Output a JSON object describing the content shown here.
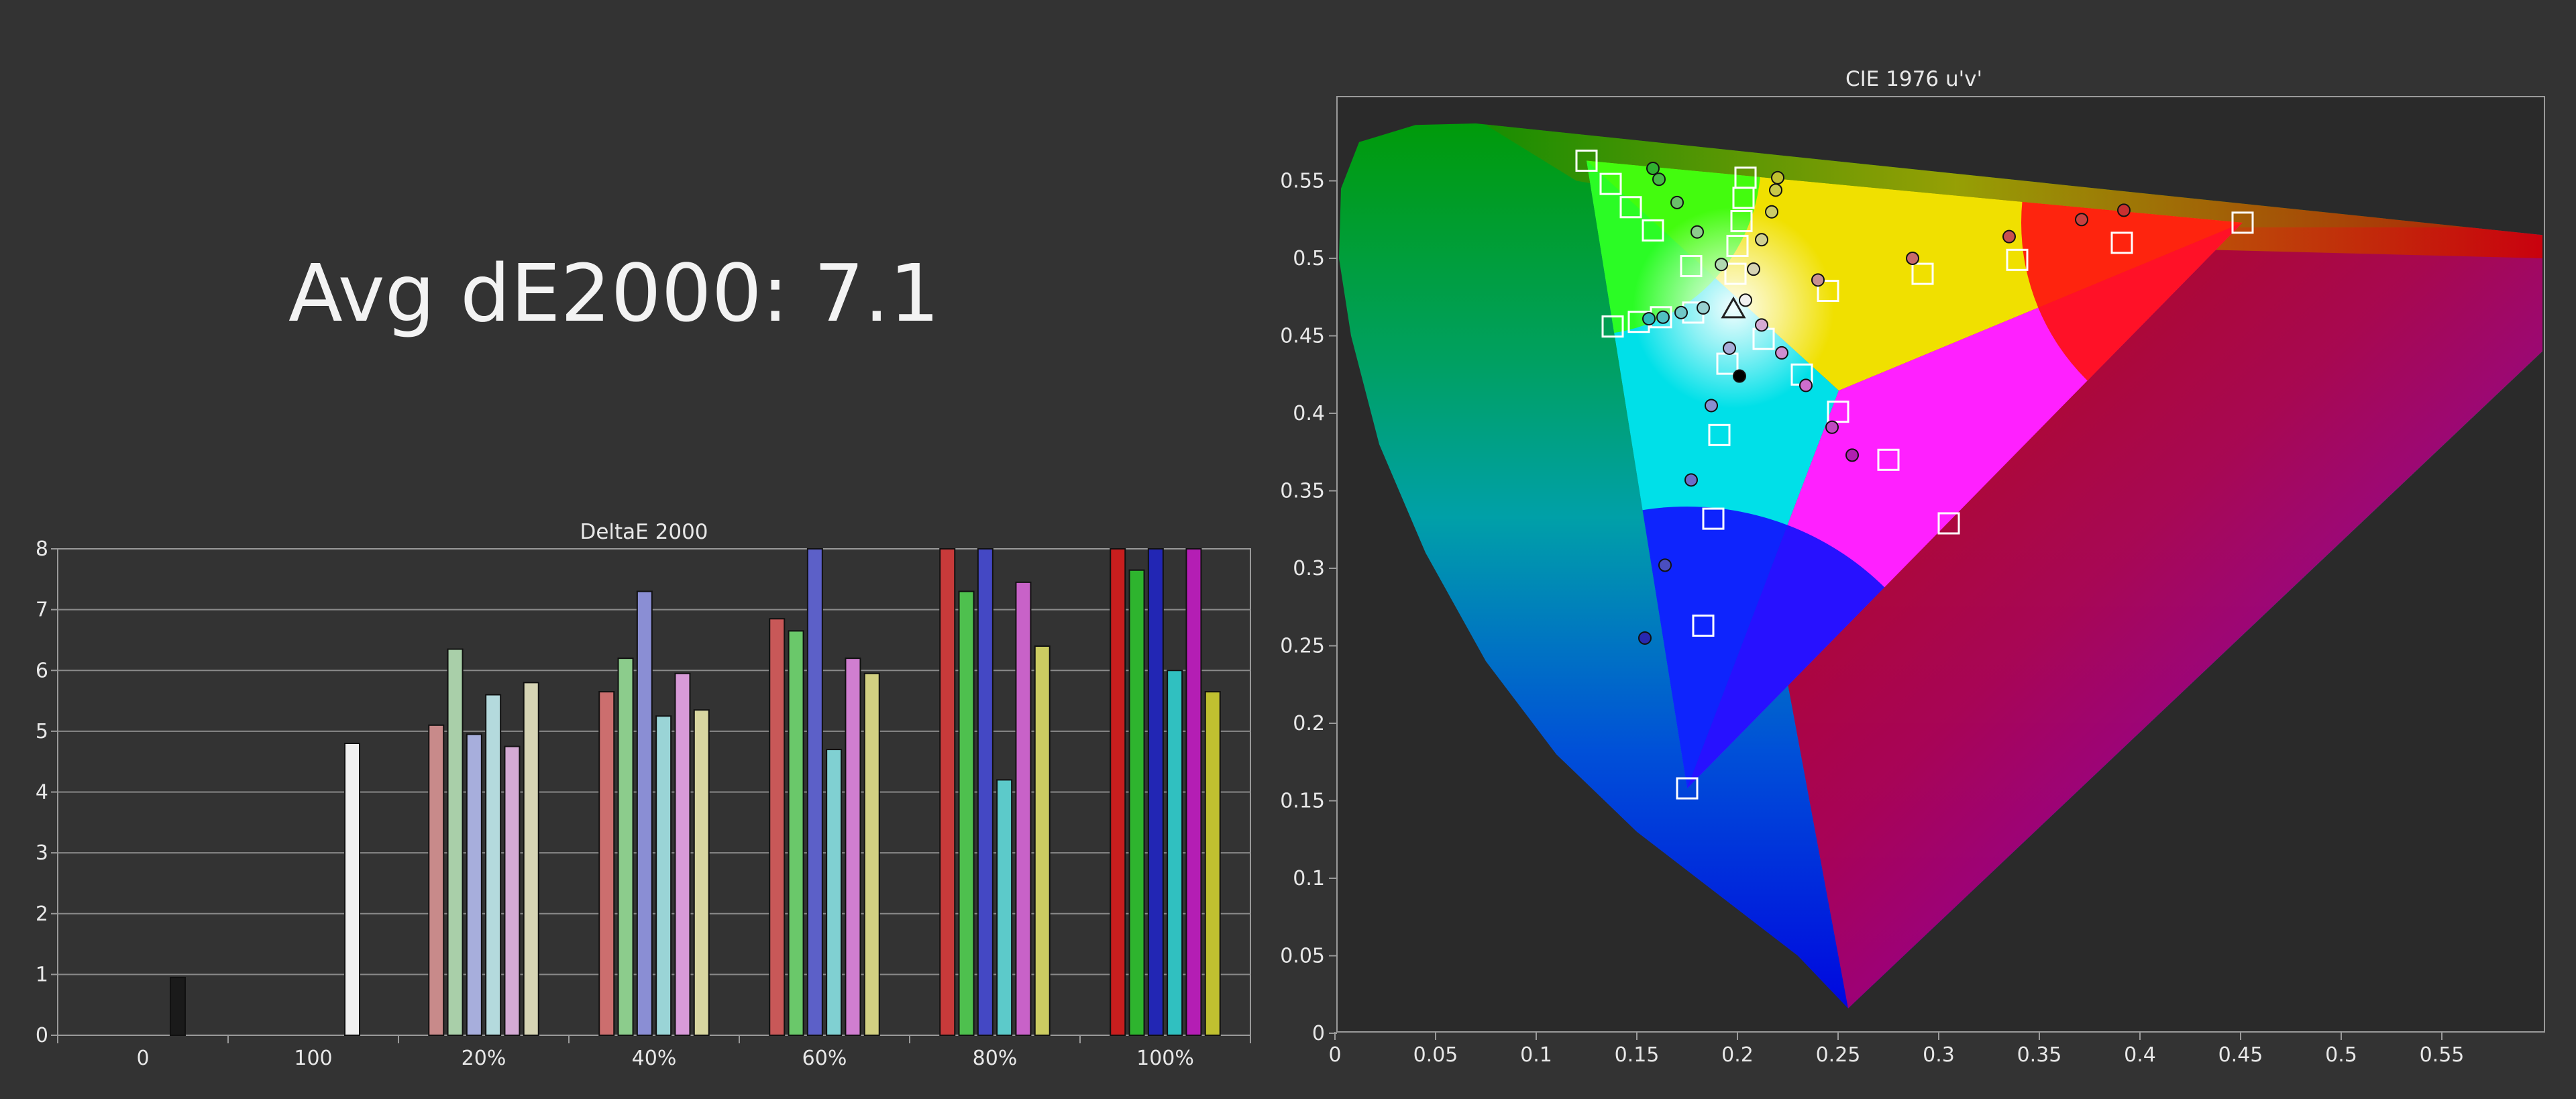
{
  "headline": "Avg dE2000: 7.1",
  "colors": {
    "background": "#333333",
    "plot_bg": "#2a2a2a",
    "text": "#e8e8e8",
    "grid": "#888888"
  },
  "chart_data": [
    {
      "type": "bar",
      "title": "DeltaE 2000",
      "xlabel": "",
      "ylabel": "",
      "ylim": [
        0,
        8
      ],
      "yticks": [
        0,
        1,
        2,
        3,
        4,
        5,
        6,
        7,
        8
      ],
      "grid": true,
      "category_labels": [
        "0",
        "100",
        "20%",
        "40%",
        "60%",
        "80%",
        "100%"
      ],
      "bars": [
        {
          "group": 0,
          "color": "#1a1a1a",
          "value": 0.95
        },
        {
          "group": 1,
          "color": "#f0f0f0",
          "value": 4.8
        },
        {
          "group": 2,
          "color": "#c88a8a",
          "value": 5.1
        },
        {
          "group": 2,
          "color": "#a9cfa9",
          "value": 6.35
        },
        {
          "group": 2,
          "color": "#a7aedc",
          "value": 4.95
        },
        {
          "group": 2,
          "color": "#b4dadd",
          "value": 5.6
        },
        {
          "group": 2,
          "color": "#d4aad4",
          "value": 4.75
        },
        {
          "group": 2,
          "color": "#d6d4b4",
          "value": 5.8
        },
        {
          "group": 3,
          "color": "#cc6e6e",
          "value": 5.65
        },
        {
          "group": 3,
          "color": "#8ccc8c",
          "value": 6.2
        },
        {
          "group": 3,
          "color": "#8a8ed4",
          "value": 7.3
        },
        {
          "group": 3,
          "color": "#9ad4d6",
          "value": 5.25
        },
        {
          "group": 3,
          "color": "#d89ad8",
          "value": 5.95
        },
        {
          "group": 3,
          "color": "#d8d6a0",
          "value": 5.35
        },
        {
          "group": 4,
          "color": "#c85858",
          "value": 6.85
        },
        {
          "group": 4,
          "color": "#6ac86a",
          "value": 6.65
        },
        {
          "group": 4,
          "color": "#5c60c8",
          "value": 8.0
        },
        {
          "group": 4,
          "color": "#80d0d2",
          "value": 4.7
        },
        {
          "group": 4,
          "color": "#d07ed0",
          "value": 6.2
        },
        {
          "group": 4,
          "color": "#d2d082",
          "value": 5.95
        },
        {
          "group": 5,
          "color": "#c83a3a",
          "value": 8.0
        },
        {
          "group": 5,
          "color": "#4ec04e",
          "value": 7.3
        },
        {
          "group": 5,
          "color": "#4448c4",
          "value": 8.0
        },
        {
          "group": 5,
          "color": "#5ccaca",
          "value": 4.2
        },
        {
          "group": 5,
          "color": "#c862c8",
          "value": 7.45
        },
        {
          "group": 5,
          "color": "#cccc62",
          "value": 6.4
        },
        {
          "group": 6,
          "color": "#c81e1e",
          "value": 8.0
        },
        {
          "group": 6,
          "color": "#2eb42e",
          "value": 7.65
        },
        {
          "group": 6,
          "color": "#2226b4",
          "value": 8.0
        },
        {
          "group": 6,
          "color": "#30c0c0",
          "value": 6.0
        },
        {
          "group": 6,
          "color": "#b41eb4",
          "value": 8.0
        },
        {
          "group": 6,
          "color": "#c0c030",
          "value": 5.65
        }
      ]
    },
    {
      "type": "scatter",
      "title": "CIE 1976 u'v'",
      "xlabel": "",
      "ylabel": "",
      "xlim": [
        0,
        0.6
      ],
      "ylim": [
        0,
        0.6
      ],
      "xticks": [
        "0",
        "0.05",
        "0.1",
        "0.15",
        "0.2",
        "0.25",
        "0.3",
        "0.35",
        "0.4",
        "0.45",
        "0.5",
        "0.55"
      ],
      "yticks": [
        "0",
        "0.05",
        "0.1",
        "0.15",
        "0.2",
        "0.25",
        "0.3",
        "0.35",
        "0.4",
        "0.45",
        "0.5",
        "0.55"
      ],
      "gamut_triangle": [
        [
          0.451,
          0.523
        ],
        [
          0.125,
          0.563
        ],
        [
          0.175,
          0.158
        ]
      ],
      "white_point": [
        0.198,
        0.468
      ],
      "target_squares": [
        [
          0.451,
          0.523
        ],
        [
          0.391,
          0.51
        ],
        [
          0.339,
          0.499
        ],
        [
          0.292,
          0.49
        ],
        [
          0.245,
          0.479
        ],
        [
          0.125,
          0.563
        ],
        [
          0.137,
          0.548
        ],
        [
          0.147,
          0.533
        ],
        [
          0.158,
          0.518
        ],
        [
          0.177,
          0.495
        ],
        [
          0.175,
          0.158
        ],
        [
          0.183,
          0.263
        ],
        [
          0.188,
          0.332
        ],
        [
          0.191,
          0.386
        ],
        [
          0.195,
          0.432
        ],
        [
          0.138,
          0.456
        ],
        [
          0.151,
          0.459
        ],
        [
          0.162,
          0.462
        ],
        [
          0.178,
          0.465
        ],
        [
          0.305,
          0.329
        ],
        [
          0.275,
          0.37
        ],
        [
          0.25,
          0.401
        ],
        [
          0.232,
          0.425
        ],
        [
          0.213,
          0.448
        ],
        [
          0.204,
          0.552
        ],
        [
          0.203,
          0.539
        ],
        [
          0.202,
          0.524
        ],
        [
          0.2,
          0.508
        ],
        [
          0.199,
          0.49
        ]
      ],
      "measured_points": [
        {
          "u": 0.392,
          "v": 0.531,
          "color": "#c83030"
        },
        {
          "u": 0.371,
          "v": 0.525,
          "color": "#c84040"
        },
        {
          "u": 0.335,
          "v": 0.514,
          "color": "#c85050"
        },
        {
          "u": 0.287,
          "v": 0.5,
          "color": "#c86a6a"
        },
        {
          "u": 0.24,
          "v": 0.486,
          "color": "#c89090"
        },
        {
          "u": 0.158,
          "v": 0.558,
          "color": "#30b030"
        },
        {
          "u": 0.161,
          "v": 0.551,
          "color": "#48b848"
        },
        {
          "u": 0.17,
          "v": 0.536,
          "color": "#6ac06a"
        },
        {
          "u": 0.18,
          "v": 0.517,
          "color": "#8ccc8c"
        },
        {
          "u": 0.192,
          "v": 0.496,
          "color": "#b0d8b0"
        },
        {
          "u": 0.154,
          "v": 0.255,
          "color": "#2828b0"
        },
        {
          "u": 0.164,
          "v": 0.302,
          "color": "#4a4ec0"
        },
        {
          "u": 0.177,
          "v": 0.357,
          "color": "#6a6ec8"
        },
        {
          "u": 0.187,
          "v": 0.405,
          "color": "#8a8ed0"
        },
        {
          "u": 0.196,
          "v": 0.442,
          "color": "#a8acd8"
        },
        {
          "u": 0.156,
          "v": 0.461,
          "color": "#30b8b8"
        },
        {
          "u": 0.163,
          "v": 0.462,
          "color": "#50c0c0"
        },
        {
          "u": 0.172,
          "v": 0.465,
          "color": "#70c8c8"
        },
        {
          "u": 0.183,
          "v": 0.468,
          "color": "#98d0d0"
        },
        {
          "u": 0.257,
          "v": 0.373,
          "color": "#b020b0"
        },
        {
          "u": 0.247,
          "v": 0.391,
          "color": "#c04ac0"
        },
        {
          "u": 0.234,
          "v": 0.418,
          "color": "#cc6ecc"
        },
        {
          "u": 0.222,
          "v": 0.439,
          "color": "#d08ed0"
        },
        {
          "u": 0.212,
          "v": 0.457,
          "color": "#d4aad4"
        },
        {
          "u": 0.22,
          "v": 0.552,
          "color": "#c0c030"
        },
        {
          "u": 0.219,
          "v": 0.544,
          "color": "#c8c848"
        },
        {
          "u": 0.217,
          "v": 0.53,
          "color": "#cccc68"
        },
        {
          "u": 0.212,
          "v": 0.512,
          "color": "#d0d090"
        },
        {
          "u": 0.208,
          "v": 0.493,
          "color": "#d6d4b4"
        },
        {
          "u": 0.204,
          "v": 0.473,
          "color": "#f0f0f0"
        },
        {
          "u": 0.201,
          "v": 0.424,
          "color": "#000000"
        }
      ]
    }
  ]
}
